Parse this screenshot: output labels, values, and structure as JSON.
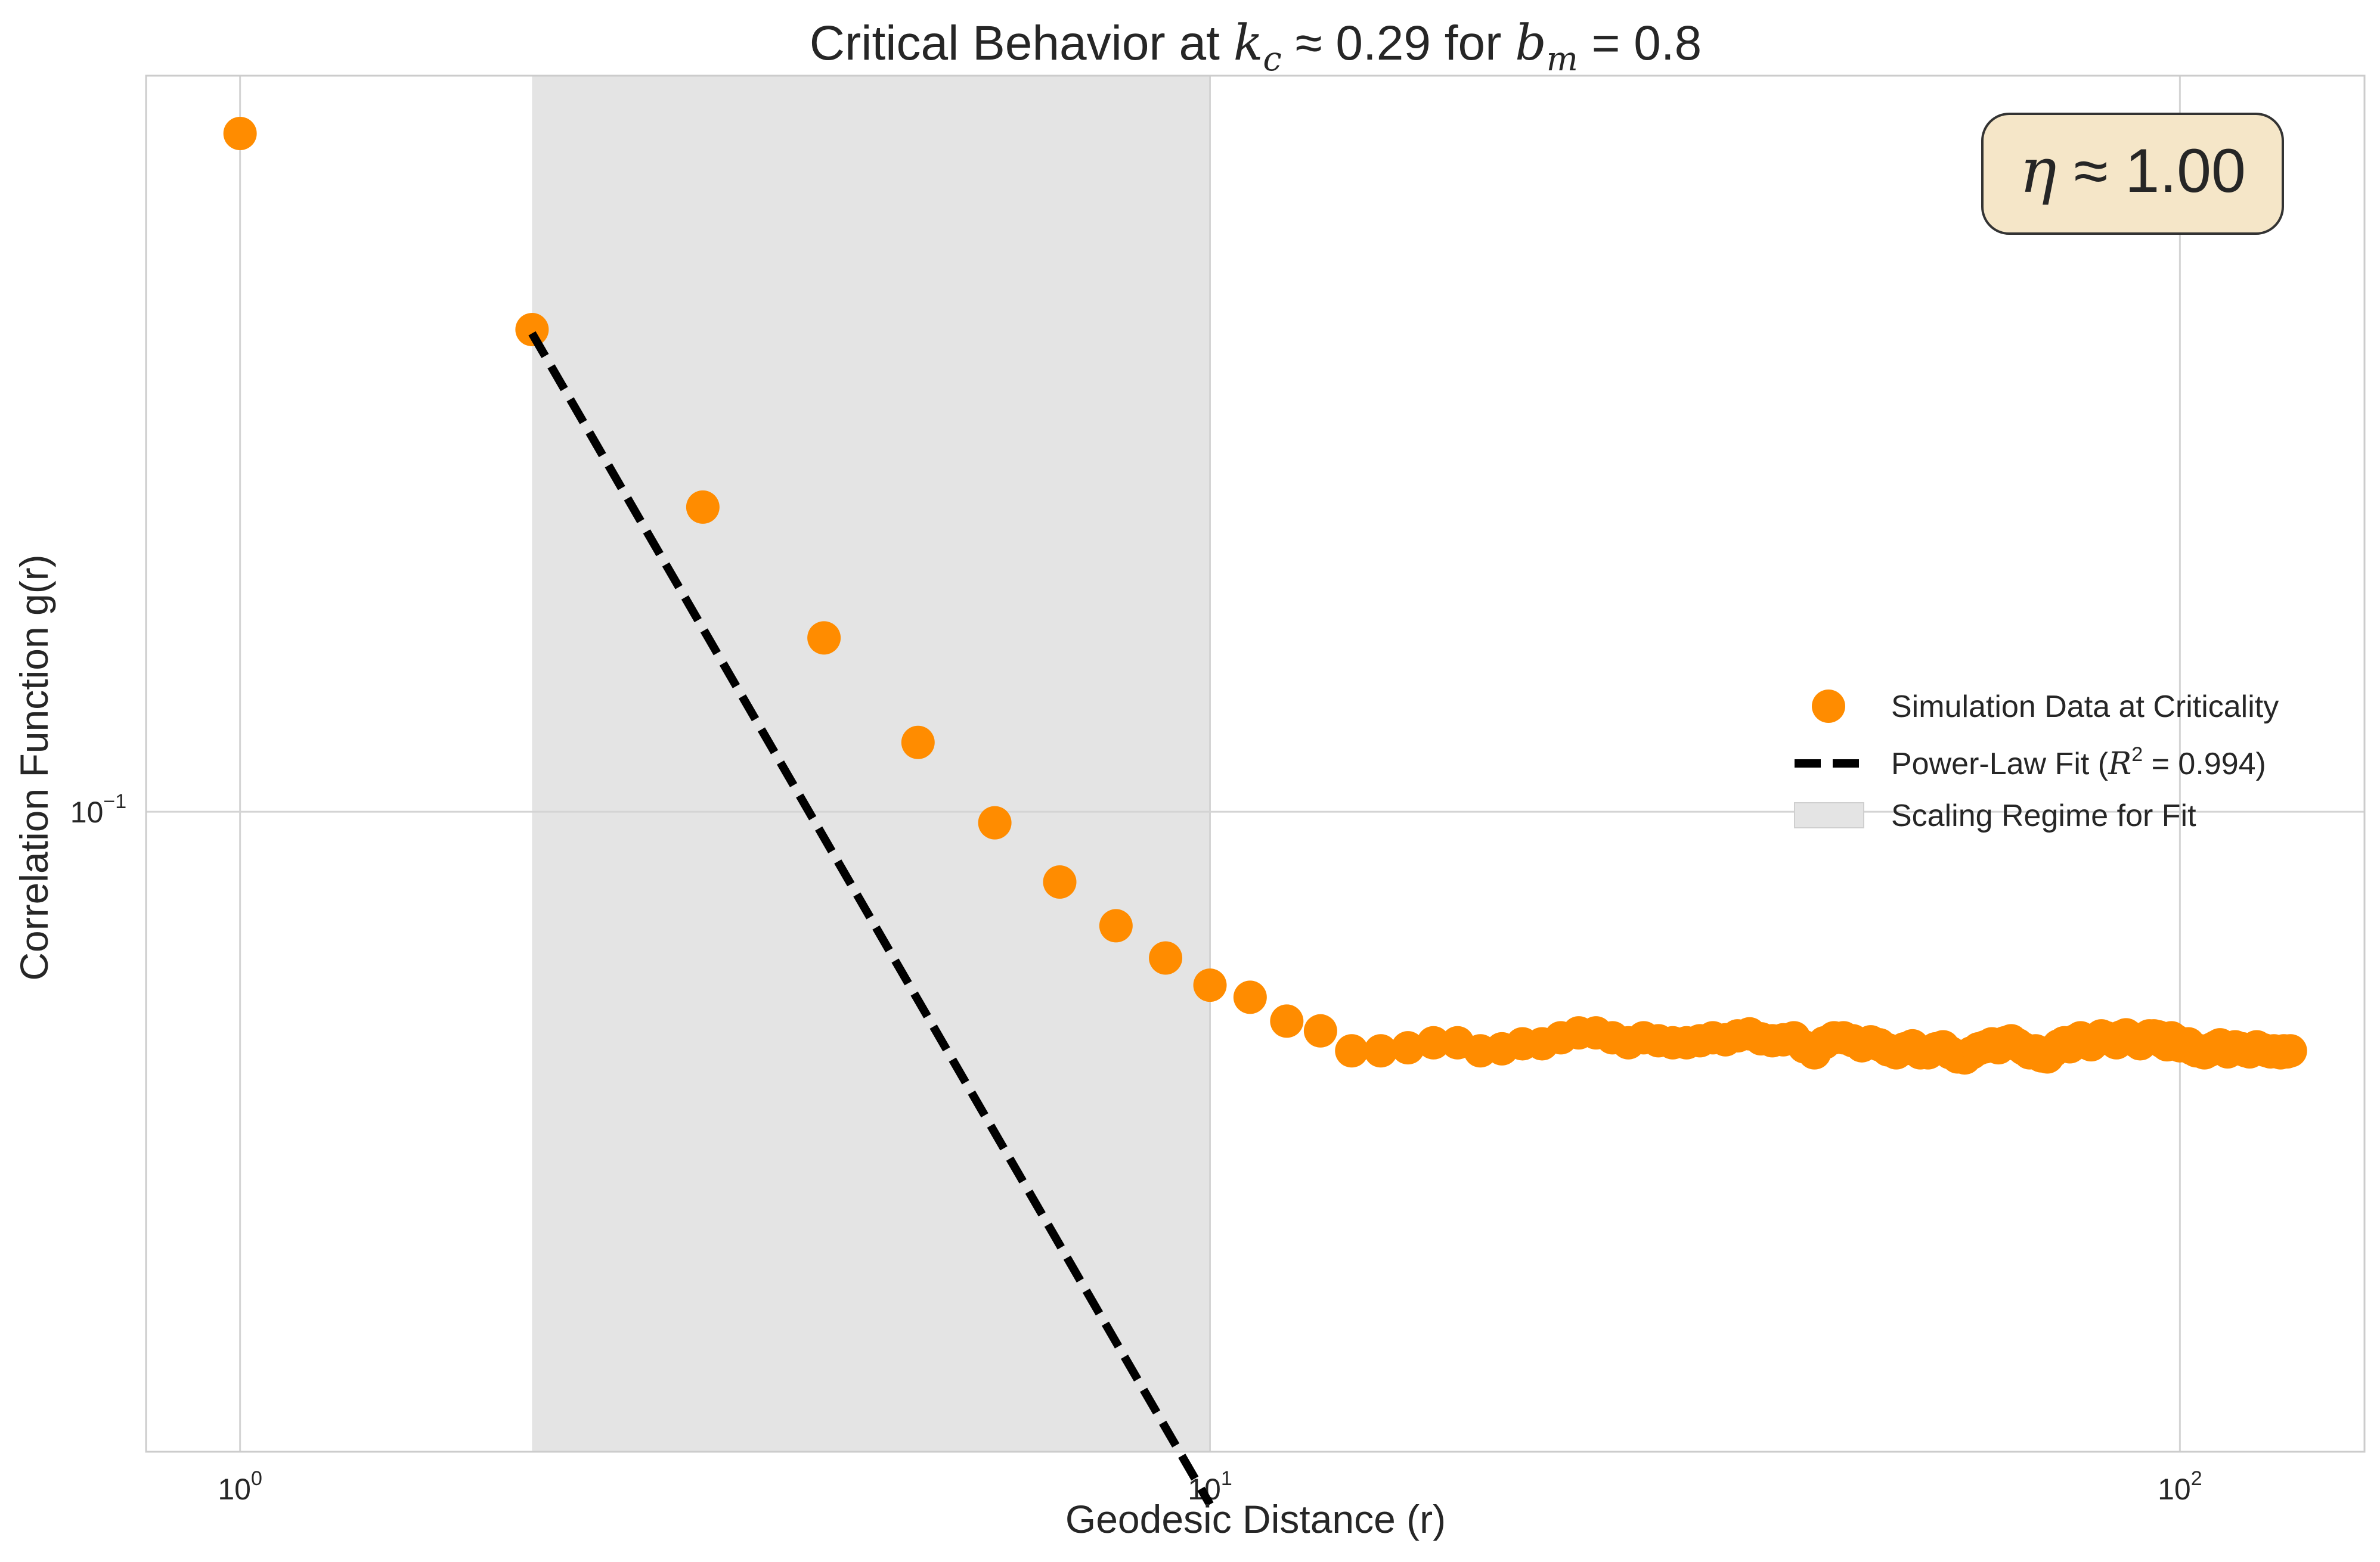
{
  "chart_data": {
    "type": "scatter",
    "title": {
      "prefix": "Critical Behavior at ",
      "k_symbol": "k",
      "k_sub": "c",
      "k_rel": " ≈ 0.29 for ",
      "b_symbol": "b",
      "b_sub": "m",
      "b_rel": " = 0.8"
    },
    "xlabel": "Geodesic Distance (r)",
    "ylabel": "Correlation Function g(r)",
    "xscale": "log",
    "yscale": "log",
    "xlim": [
      0.8,
      155
    ],
    "ylim": [
      0.0415,
      0.275
    ],
    "grid": true,
    "x_ticks": [
      {
        "value": 1,
        "base": "10",
        "exp": "0"
      },
      {
        "value": 10,
        "base": "10",
        "exp": "1"
      },
      {
        "value": 100,
        "base": "10",
        "exp": "2"
      }
    ],
    "y_ticks": [
      {
        "value": 0.1,
        "base": "10",
        "exp": "−1"
      }
    ],
    "shaded_region": {
      "x_start": 2,
      "x_end": 10,
      "color": "#e4e4e4",
      "label": "Scaling Regime for Fit"
    },
    "series": [
      {
        "name": "Simulation Data at Criticality",
        "color": "#ff8c00",
        "x": [
          1,
          2,
          3,
          4,
          5,
          6,
          7,
          8,
          9,
          10,
          11,
          12,
          13,
          14,
          15,
          16,
          17,
          18,
          19,
          20,
          21,
          22,
          23,
          24,
          25,
          26,
          27,
          28,
          29,
          30,
          31,
          32,
          33,
          34,
          35,
          36,
          37,
          38,
          39,
          40,
          41,
          42,
          43,
          44,
          45,
          46,
          47,
          48,
          49,
          50,
          51,
          52,
          53,
          54,
          55,
          56,
          57,
          58,
          59,
          60,
          61,
          62,
          63,
          64,
          65,
          66,
          67,
          68,
          69,
          70,
          71,
          72,
          73,
          74,
          75,
          76,
          77,
          78,
          79,
          80,
          81,
          82,
          83,
          84,
          85,
          86,
          87,
          88,
          89,
          90,
          91,
          92,
          93,
          94,
          95,
          96,
          97,
          98,
          99,
          100,
          101,
          102,
          103,
          104,
          105,
          106,
          107,
          108,
          109,
          110,
          111,
          112,
          113,
          114,
          115,
          116,
          117,
          118,
          119,
          120,
          121,
          122,
          123,
          124,
          125,
          126,
          127,
          128,
          129,
          130
        ],
        "y": [
          0.254,
          0.194,
          0.152,
          0.127,
          0.11,
          0.0985,
          0.0908,
          0.0855,
          0.0818,
          0.0788,
          0.0775,
          0.075,
          0.074,
          0.072,
          0.072,
          0.0723,
          0.0728,
          0.0728,
          0.072,
          0.0722,
          0.0727,
          0.0727,
          0.0733,
          0.0738,
          0.0738,
          0.0733,
          0.0728,
          0.0733,
          0.073,
          0.0728,
          0.0728,
          0.073,
          0.0733,
          0.0731,
          0.0735,
          0.0737,
          0.0732,
          0.073,
          0.0731,
          0.0733,
          0.0724,
          0.0718,
          0.0728,
          0.0733,
          0.0733,
          0.073,
          0.0725,
          0.0729,
          0.0726,
          0.0721,
          0.0718,
          0.0722,
          0.0725,
          0.0718,
          0.0718,
          0.0722,
          0.0724,
          0.0718,
          0.0714,
          0.0713,
          0.0718,
          0.0722,
          0.0724,
          0.0727,
          0.0723,
          0.0728,
          0.073,
          0.0726,
          0.0722,
          0.0718,
          0.072,
          0.0715,
          0.0714,
          0.072,
          0.0725,
          0.0728,
          0.0724,
          0.073,
          0.0733,
          0.0728,
          0.0726,
          0.0731,
          0.0735,
          0.0733,
          0.0731,
          0.0728,
          0.0734,
          0.0736,
          0.0733,
          0.073,
          0.0727,
          0.0731,
          0.0735,
          0.0735,
          0.0734,
          0.0729,
          0.0726,
          0.0733,
          0.073,
          0.0725,
          0.0725,
          0.0727,
          0.0722,
          0.072,
          0.072,
          0.0718,
          0.072,
          0.0722,
          0.0724,
          0.0726,
          0.0722,
          0.0719,
          0.0721,
          0.0724,
          0.0722,
          0.0722,
          0.072,
          0.0719,
          0.0722,
          0.0724,
          0.0722,
          0.0721,
          0.072,
          0.0719,
          0.072,
          0.0719,
          0.0718,
          0.072,
          0.0719,
          0.072
        ]
      },
      {
        "name": "Power-Law Fit",
        "legend_suffix_open": " (",
        "r2_symbol": "R",
        "r2_exp": "2",
        "r2_rel": " = 0.994)",
        "color": "#000000",
        "style": "dashed",
        "x_range": [
          2,
          10
        ],
        "exponent": -1.0,
        "y_at_xmin": 0.193
      }
    ],
    "legend_position": "center-right",
    "annotation": {
      "symbol": "η",
      "text": " ≈ 1.00",
      "box_color": "#f5e6c8",
      "position": "top-right"
    }
  }
}
